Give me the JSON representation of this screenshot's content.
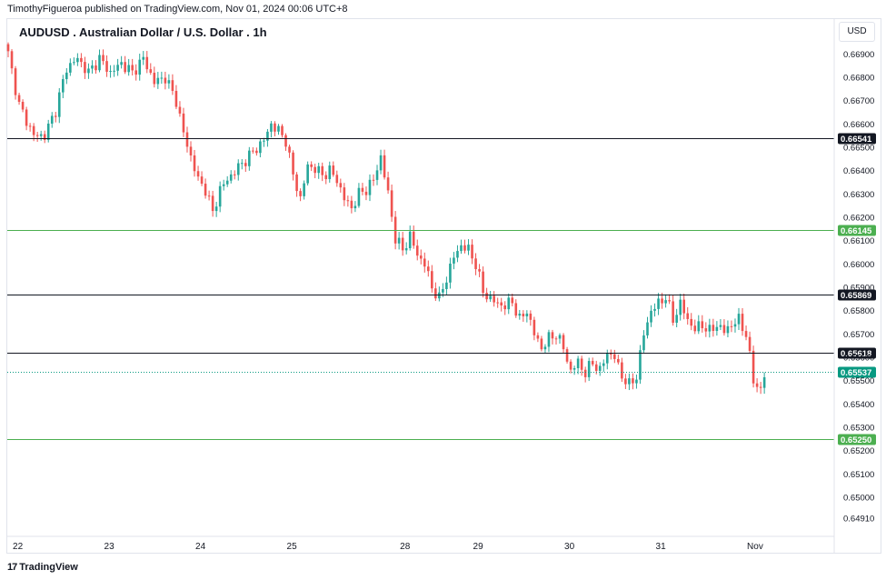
{
  "header": {
    "published_note": "TimothyFigueroa published on TradingView.com, Nov 01, 2024 00:06 UTC+8"
  },
  "footer": {
    "logo_mark": "17",
    "logo_text": "TradingView"
  },
  "colors": {
    "up": "#26a69a",
    "down": "#ef5350",
    "support": "#4caf50",
    "resistance": "#131722",
    "last": "#089981"
  },
  "chart_data": {
    "type": "candlestick",
    "title": "AUDUSD . Australian Dollar / U.S. Dollar . 1h",
    "currency": "USD",
    "ylim": [
      0.6484,
      0.6696
    ],
    "price_ticks": [
      "0.66900",
      "0.66800",
      "0.66700",
      "0.66600",
      "0.66500",
      "0.66400",
      "0.66300",
      "0.66200",
      "0.66100",
      "0.66000",
      "0.65900",
      "0.65800",
      "0.65700",
      "0.65600",
      "0.65500",
      "0.65400",
      "0.65300",
      "0.65200",
      "0.65100",
      "0.65000",
      "0.64910"
    ],
    "date_ticks": [
      {
        "label": "22",
        "index": 2
      },
      {
        "label": "23",
        "index": 27
      },
      {
        "label": "24",
        "index": 52
      },
      {
        "label": "25",
        "index": 77
      },
      {
        "label": "28",
        "index": 108
      },
      {
        "label": "29",
        "index": 128
      },
      {
        "label": "30",
        "index": 153
      },
      {
        "label": "31",
        "index": 178
      },
      {
        "label": "Nov",
        "index": 203
      }
    ],
    "horizontal_levels": [
      {
        "value": "0.66541",
        "price": 0.66541,
        "style": "solid",
        "kind": "resistance"
      },
      {
        "value": "0.66145",
        "price": 0.66145,
        "style": "solid",
        "kind": "support"
      },
      {
        "value": "0.65869",
        "price": 0.65869,
        "style": "solid",
        "kind": "resistance"
      },
      {
        "value": "0.65618",
        "price": 0.65618,
        "style": "solid",
        "kind": "resistance"
      },
      {
        "value": "0.65537",
        "price": 0.65537,
        "style": "dotted",
        "kind": "last"
      },
      {
        "value": "0.65250",
        "price": 0.6525,
        "style": "solid",
        "kind": "support"
      }
    ],
    "close_path": [
      [
        0,
        0.669
      ],
      [
        3,
        0.6668
      ],
      [
        7,
        0.6655
      ],
      [
        10,
        0.6655
      ],
      [
        13,
        0.6666
      ],
      [
        16,
        0.6684
      ],
      [
        19,
        0.6688
      ],
      [
        22,
        0.6682
      ],
      [
        25,
        0.6688
      ],
      [
        28,
        0.6682
      ],
      [
        31,
        0.6686
      ],
      [
        34,
        0.6682
      ],
      [
        37,
        0.6688
      ],
      [
        40,
        0.6678
      ],
      [
        43,
        0.668
      ],
      [
        46,
        0.667
      ],
      [
        48,
        0.6656
      ],
      [
        50,
        0.6646
      ],
      [
        52,
        0.6636
      ],
      [
        54,
        0.6632
      ],
      [
        56,
        0.6622
      ],
      [
        58,
        0.6632
      ],
      [
        61,
        0.6638
      ],
      [
        64,
        0.6643
      ],
      [
        67,
        0.6648
      ],
      [
        70,
        0.6653
      ],
      [
        72,
        0.666
      ],
      [
        74,
        0.6657
      ],
      [
        76,
        0.6653
      ],
      [
        78,
        0.6638
      ],
      [
        80,
        0.6628
      ],
      [
        82,
        0.6642
      ],
      [
        84,
        0.6641
      ],
      [
        86,
        0.6638
      ],
      [
        88,
        0.664
      ],
      [
        90,
        0.6636
      ],
      [
        92,
        0.6628
      ],
      [
        94,
        0.6624
      ],
      [
        96,
        0.663
      ],
      [
        98,
        0.6632
      ],
      [
        100,
        0.6636
      ],
      [
        102,
        0.6646
      ],
      [
        104,
        0.663
      ],
      [
        106,
        0.6611
      ],
      [
        108,
        0.6606
      ],
      [
        110,
        0.6612
      ],
      [
        112,
        0.6604
      ],
      [
        114,
        0.66
      ],
      [
        116,
        0.659
      ],
      [
        118,
        0.6585
      ],
      [
        120,
        0.6594
      ],
      [
        122,
        0.6603
      ],
      [
        124,
        0.6608
      ],
      [
        126,
        0.6606
      ],
      [
        128,
        0.66
      ],
      [
        130,
        0.6588
      ],
      [
        132,
        0.6585
      ],
      [
        134,
        0.6583
      ],
      [
        136,
        0.6582
      ],
      [
        138,
        0.6584
      ],
      [
        140,
        0.6576
      ],
      [
        142,
        0.658
      ],
      [
        144,
        0.657
      ],
      [
        146,
        0.6564
      ],
      [
        148,
        0.6568
      ],
      [
        150,
        0.657
      ],
      [
        152,
        0.6564
      ],
      [
        154,
        0.6554
      ],
      [
        156,
        0.6558
      ],
      [
        158,
        0.6553
      ],
      [
        160,
        0.6558
      ],
      [
        162,
        0.6554
      ],
      [
        164,
        0.6562
      ],
      [
        166,
        0.656
      ],
      [
        168,
        0.6552
      ],
      [
        170,
        0.6548
      ],
      [
        172,
        0.6552
      ],
      [
        174,
        0.657
      ],
      [
        176,
        0.658
      ],
      [
        178,
        0.6583
      ],
      [
        180,
        0.6586
      ],
      [
        182,
        0.6576
      ],
      [
        184,
        0.6583
      ],
      [
        186,
        0.6576
      ],
      [
        188,
        0.6572
      ],
      [
        190,
        0.6574
      ],
      [
        192,
        0.6571
      ],
      [
        194,
        0.6574
      ],
      [
        196,
        0.6571
      ],
      [
        198,
        0.6574
      ],
      [
        200,
        0.6576
      ],
      [
        202,
        0.657
      ],
      [
        204,
        0.655
      ],
      [
        206,
        0.6546
      ],
      [
        207,
        0.6552
      ]
    ]
  }
}
